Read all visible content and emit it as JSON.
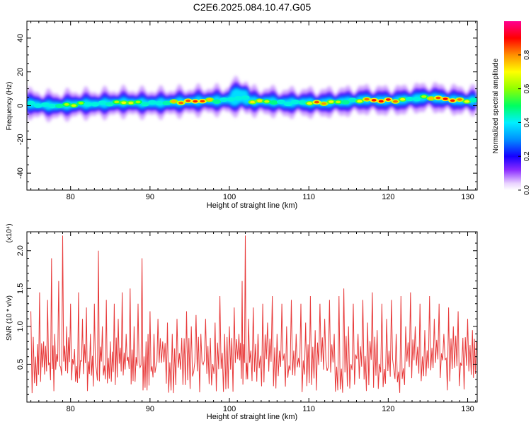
{
  "figure_title": "C2E6.2025.084.10.47.G05",
  "chart_data": [
    {
      "type": "heatmap",
      "xlabel": "Height of straight line (km)",
      "ylabel": "Frequency (Hz)",
      "xlim": [
        74.5,
        131.2
      ],
      "ylim": [
        -50,
        50
      ],
      "x_ticks": [
        80,
        90,
        100,
        110,
        120,
        130
      ],
      "y_ticks": [
        -40,
        -20,
        0,
        20,
        40
      ],
      "colorbar": {
        "label": "Normalized spectral amplitude",
        "range": [
          0,
          1
        ],
        "ticks": [
          0.0,
          0.2,
          0.4,
          0.6,
          0.8
        ]
      },
      "ridge": {
        "x": [
          75,
          77,
          79,
          81,
          83,
          85,
          87,
          89,
          91,
          93,
          95,
          97,
          99,
          100.5,
          101.5,
          103,
          105,
          107,
          109,
          111,
          113,
          115,
          117,
          119,
          121,
          123,
          125,
          127,
          129,
          131
        ],
        "y": [
          1,
          0,
          0,
          1,
          1,
          1.5,
          2,
          1.5,
          1.5,
          2,
          2.5,
          3,
          3,
          4,
          5,
          2.5,
          2.5,
          1.5,
          2,
          1.5,
          2,
          2.5,
          3.5,
          3,
          3,
          4,
          5,
          4,
          3,
          3
        ],
        "peak_amplitude": [
          0.5,
          0.5,
          0.6,
          0.75,
          0.6,
          0.65,
          0.7,
          0.65,
          0.65,
          0.9,
          0.85,
          0.95,
          0.8,
          0.55,
          0.3,
          0.75,
          0.7,
          0.8,
          0.6,
          0.85,
          0.75,
          0.9,
          0.95,
          0.9,
          0.9,
          0.8,
          0.85,
          0.9,
          0.9,
          0.85
        ]
      }
    },
    {
      "type": "line",
      "xlabel": "Height of straight line (km)",
      "ylabel": "SNR (10 * v/v)",
      "y_multiplier": "(x10⁴)",
      "xlim": [
        74.5,
        131.2
      ],
      "ylim": [
        0,
        2.25
      ],
      "x_ticks": [
        80,
        90,
        100,
        110,
        120,
        130
      ],
      "y_ticks": [
        0.5,
        1.0,
        1.5,
        2.0
      ],
      "y_tick_labels": [
        "0.5",
        "1.0",
        "1.5",
        "2.0"
      ],
      "series": [
        {
          "color": "#e83a3a",
          "peaks_x": [
            75.0,
            75.6,
            76.1,
            76.6,
            77.1,
            77.6,
            78.0,
            78.5,
            79.0,
            79.5,
            80.0,
            80.5,
            81.0,
            81.5,
            82.0,
            82.5,
            83.0,
            83.5,
            84.0,
            84.5,
            85.0,
            85.5,
            86.0,
            86.5,
            87.0,
            87.5,
            88.0,
            88.5,
            89.0,
            89.5,
            90.0,
            90.5,
            91.0,
            91.6,
            92.2,
            92.8,
            93.4,
            94.0,
            94.6,
            95.2,
            95.8,
            96.4,
            97.0,
            97.6,
            98.2,
            98.8,
            99.4,
            100.0,
            100.6,
            101.2,
            101.6,
            102.0,
            102.4,
            103.0,
            103.6,
            104.2,
            104.8,
            105.4,
            106.0,
            106.6,
            107.2,
            107.8,
            108.4,
            109.0,
            109.6,
            110.2,
            110.8,
            111.4,
            112.0,
            112.6,
            113.2,
            113.8,
            114.4,
            115.0,
            115.6,
            116.2,
            116.8,
            117.4,
            118.0,
            118.6,
            119.2,
            119.8,
            120.4,
            121.0,
            121.6,
            122.2,
            122.8,
            123.4,
            124.0,
            124.6,
            125.2,
            125.8,
            126.4,
            127.0,
            127.6,
            128.2,
            128.8,
            129.4,
            130.0,
            130.6,
            131.1
          ],
          "peaks_y": [
            1.2,
            0.6,
            1.45,
            0.8,
            1.35,
            1.9,
            0.9,
            1.6,
            2.2,
            1.0,
            1.3,
            0.7,
            1.45,
            1.1,
            1.25,
            0.9,
            1.3,
            2.0,
            1.0,
            1.35,
            0.8,
            1.3,
            1.1,
            1.45,
            0.9,
            1.5,
            1.0,
            1.3,
            1.9,
            0.8,
            1.2,
            0.9,
            1.1,
            0.8,
            1.05,
            0.9,
            1.1,
            0.85,
            1.2,
            1.0,
            1.15,
            0.9,
            1.1,
            0.85,
            1.05,
            1.4,
            0.9,
            1.0,
            1.25,
            0.9,
            1.6,
            2.2,
            1.1,
            1.25,
            0.9,
            1.3,
            1.05,
            1.4,
            0.9,
            1.3,
            1.0,
            1.35,
            0.9,
            1.3,
            1.05,
            1.4,
            0.95,
            1.3,
            1.1,
            1.35,
            0.9,
            1.4,
            1.5,
            1.0,
            1.3,
            0.9,
            1.35,
            1.05,
            1.45,
            0.95,
            1.3,
            1.1,
            1.35,
            0.9,
            1.4,
            1.0,
            1.45,
            1.0,
            1.3,
            0.95,
            1.4,
            1.1,
            1.3,
            0.9,
            1.25,
            1.0,
            1.2,
            0.85,
            1.1,
            0.95,
            0.8
          ]
        }
      ]
    }
  ]
}
